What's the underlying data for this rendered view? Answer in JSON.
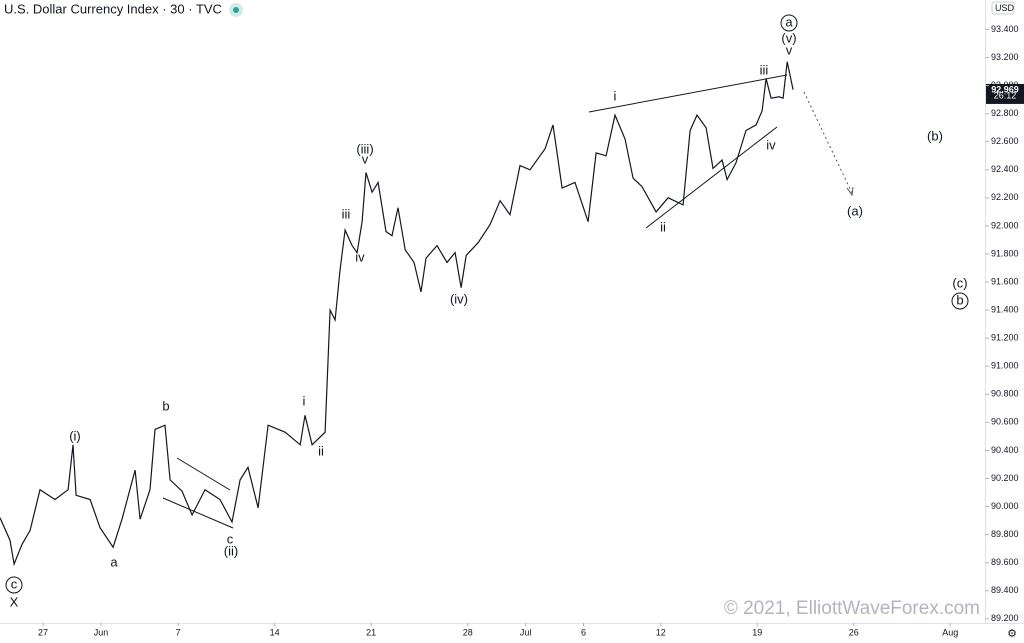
{
  "chart_data": {
    "type": "line",
    "title": "U.S. Dollar Currency Index · 30 · TVC",
    "currency": "USD",
    "last_price": 92.969,
    "countdown": "26:12",
    "watermark": "© 2021, ElliottWaveForex.com",
    "grid": false,
    "xlim": [
      -2.23,
      48.8
    ],
    "xticks": [
      {
        "value": 0,
        "label": "27"
      },
      {
        "value": 3,
        "label": "Jun"
      },
      {
        "value": 7,
        "label": "7"
      },
      {
        "value": 12,
        "label": "14"
      },
      {
        "value": 17,
        "label": "21"
      },
      {
        "value": 22,
        "label": "28"
      },
      {
        "value": 25,
        "label": "Jul"
      },
      {
        "value": 28,
        "label": "6"
      },
      {
        "value": 32,
        "label": "12"
      },
      {
        "value": 37,
        "label": "19"
      },
      {
        "value": 42,
        "label": "26"
      },
      {
        "value": 47,
        "label": "Aug"
      }
    ],
    "ylim": [
      89.17,
      93.61
    ],
    "yticks": [
      {
        "value": 89.2,
        "label": "89.200"
      },
      {
        "value": 89.4,
        "label": "89.400"
      },
      {
        "value": 89.6,
        "label": "89.600"
      },
      {
        "value": 89.8,
        "label": "89.800"
      },
      {
        "value": 90.0,
        "label": "90.000"
      },
      {
        "value": 90.2,
        "label": "90.200"
      },
      {
        "value": 90.4,
        "label": "90.400"
      },
      {
        "value": 90.6,
        "label": "90.600"
      },
      {
        "value": 90.8,
        "label": "90.800"
      },
      {
        "value": 91.0,
        "label": "91.000"
      },
      {
        "value": 91.2,
        "label": "91.200"
      },
      {
        "value": 91.4,
        "label": "91.400"
      },
      {
        "value": 91.6,
        "label": "91.600"
      },
      {
        "value": 91.8,
        "label": "91.800"
      },
      {
        "value": 92.0,
        "label": "92.000"
      },
      {
        "value": 92.2,
        "label": "92.200"
      },
      {
        "value": 92.4,
        "label": "92.400"
      },
      {
        "value": 92.6,
        "label": "92.600"
      },
      {
        "value": 92.8,
        "label": "92.800"
      },
      {
        "value": 93.0,
        "label": "93.000"
      },
      {
        "value": 93.2,
        "label": "93.200"
      },
      {
        "value": 93.4,
        "label": "93.400"
      }
    ],
    "color": "#131722",
    "x": [
      -2.23,
      -1.71,
      -1.5,
      -1.09,
      -0.67,
      -0.16,
      0.62,
      1.3,
      1.55,
      1.71,
      2.44,
      2.95,
      3.63,
      4.09,
      4.77,
      5.03,
      5.54,
      5.8,
      6.32,
      6.58,
      7.2,
      7.72,
      8.39,
      9.17,
      9.79,
      10.21,
      10.62,
      11.14,
      11.66,
      12.54,
      13.32,
      13.57,
      13.94,
      14.61,
      14.87,
      15.13,
      15.39,
      15.65,
      16.01,
      16.27,
      16.53,
      16.73,
      17.05,
      17.36,
      17.77,
      18.08,
      18.39,
      18.76,
      19.22,
      19.58,
      19.84,
      20.41,
      20.93,
      21.35,
      21.66,
      21.92,
      22.54,
      23.16,
      23.68,
      24.19,
      24.71,
      25.23,
      26.01,
      26.42,
      26.89,
      27.56,
      28.24,
      28.65,
      29.17,
      29.63,
      30.15,
      30.57,
      31.03,
      31.76,
      32.38,
      33.16,
      33.52,
      33.88,
      34.35,
      34.71,
      35.18,
      35.44,
      35.9,
      36.42,
      36.94,
      37.25,
      37.46,
      37.72,
      38.13,
      38.34,
      38.55,
      38.86
    ],
    "values": [
      89.92,
      89.76,
      89.59,
      89.73,
      89.83,
      90.12,
      90.05,
      90.12,
      90.44,
      90.08,
      90.05,
      89.85,
      89.71,
      89.91,
      90.26,
      89.91,
      90.12,
      90.55,
      90.58,
      90.19,
      90.11,
      89.94,
      90.12,
      90.05,
      89.89,
      90.19,
      90.28,
      89.99,
      90.58,
      90.53,
      90.44,
      90.65,
      90.44,
      90.53,
      91.4,
      91.33,
      91.69,
      91.97,
      91.86,
      91.81,
      92.03,
      92.38,
      92.24,
      92.31,
      91.96,
      91.93,
      92.13,
      91.83,
      91.74,
      91.53,
      91.77,
      91.86,
      91.74,
      91.81,
      91.56,
      91.79,
      91.88,
      92.01,
      92.18,
      92.08,
      92.43,
      92.4,
      92.55,
      92.72,
      92.27,
      92.31,
      92.03,
      92.52,
      92.5,
      92.79,
      92.62,
      92.34,
      92.28,
      92.1,
      92.2,
      92.15,
      92.68,
      92.79,
      92.7,
      92.41,
      92.47,
      92.33,
      92.45,
      92.68,
      92.72,
      92.82,
      93.05,
      92.91,
      92.92,
      92.91,
      93.17,
      92.97
    ],
    "annotations": [
      "c",
      "X",
      "(i)",
      "a",
      "b",
      "c",
      "(ii)",
      "i",
      "ii",
      "iii",
      "iv",
      "(iii)",
      "v",
      "(iv)",
      "i",
      "ii",
      "iii",
      "iv",
      "v",
      "(v)",
      "a",
      "(a)",
      "(b)",
      "(c)",
      "b"
    ]
  }
}
